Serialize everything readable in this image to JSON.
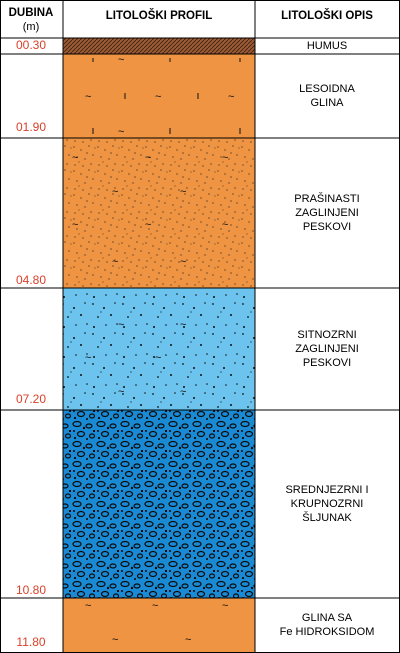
{
  "header": {
    "depth": "DUBINA",
    "unit": "(m)",
    "profile": "LITOLOŠKI PROFIL",
    "description": "LITOLOŠKI OPIS"
  },
  "layers": [
    {
      "depth": "00.30",
      "description": [
        "HUMUS"
      ]
    },
    {
      "depth": "01.90",
      "description": [
        "LESOIDNA",
        "GLINA"
      ]
    },
    {
      "depth": "04.80",
      "description": [
        "PRAŠINASTI",
        "ZAGLINJENI",
        "PESKOVI"
      ]
    },
    {
      "depth": "07.20",
      "description": [
        "SITNOZRNI",
        "ZAGLINJENI",
        "PESKOVI"
      ]
    },
    {
      "depth": "10.80",
      "description": [
        "SREDNJEZRNI I",
        "KRUPNOZRNI",
        "ŠLJUNAK"
      ]
    },
    {
      "depth": "11.80",
      "description": [
        "GLINA SA",
        "Fe HIDROKSIDOM"
      ]
    }
  ]
}
